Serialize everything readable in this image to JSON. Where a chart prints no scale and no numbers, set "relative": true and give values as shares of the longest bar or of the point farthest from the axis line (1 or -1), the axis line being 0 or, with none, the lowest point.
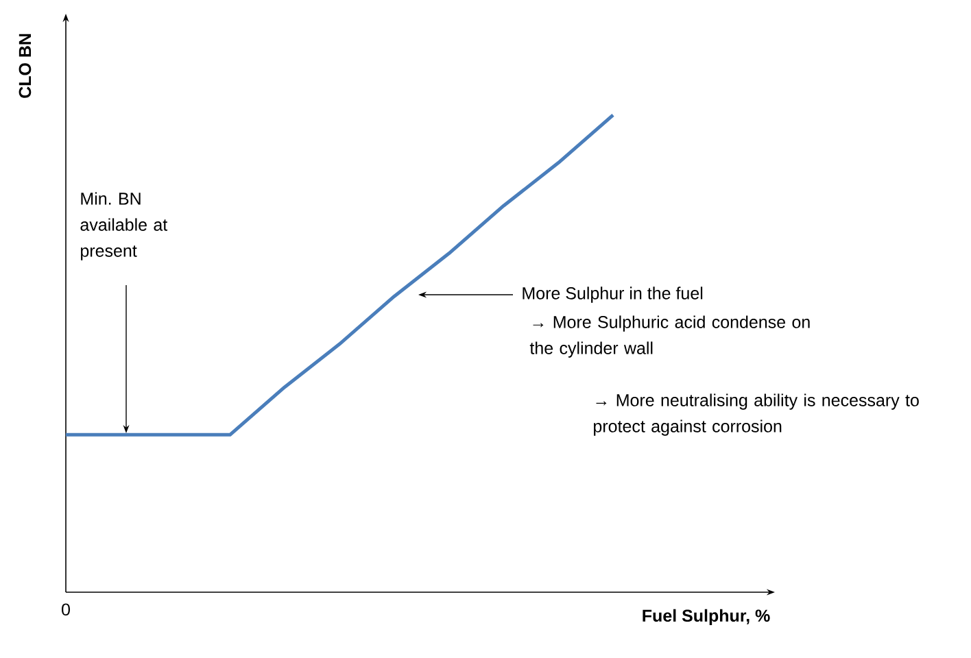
{
  "chart_data": {
    "type": "line",
    "relative": true,
    "xlabel": "Fuel Sulphur, %",
    "ylabel": "CLO BN",
    "categories": [
      null,
      null,
      null,
      null,
      null,
      null,
      null,
      null,
      null,
      null,
      null
    ],
    "series": [
      {
        "color": "#4a7ebb",
        "values": [
          0.33,
          0.33,
          0.33,
          0.33,
          0.43,
          0.52,
          0.62,
          0.71,
          0.81,
          0.9,
          1.0
        ]
      }
    ],
    "annotations": [
      "0",
      "Min. BN available at present",
      "More Sulphur in the fuel",
      "→ More Sulphuric acid condense on the cylinder wall",
      "→ More neutralising ability is necessary to protect against corrosion"
    ]
  }
}
